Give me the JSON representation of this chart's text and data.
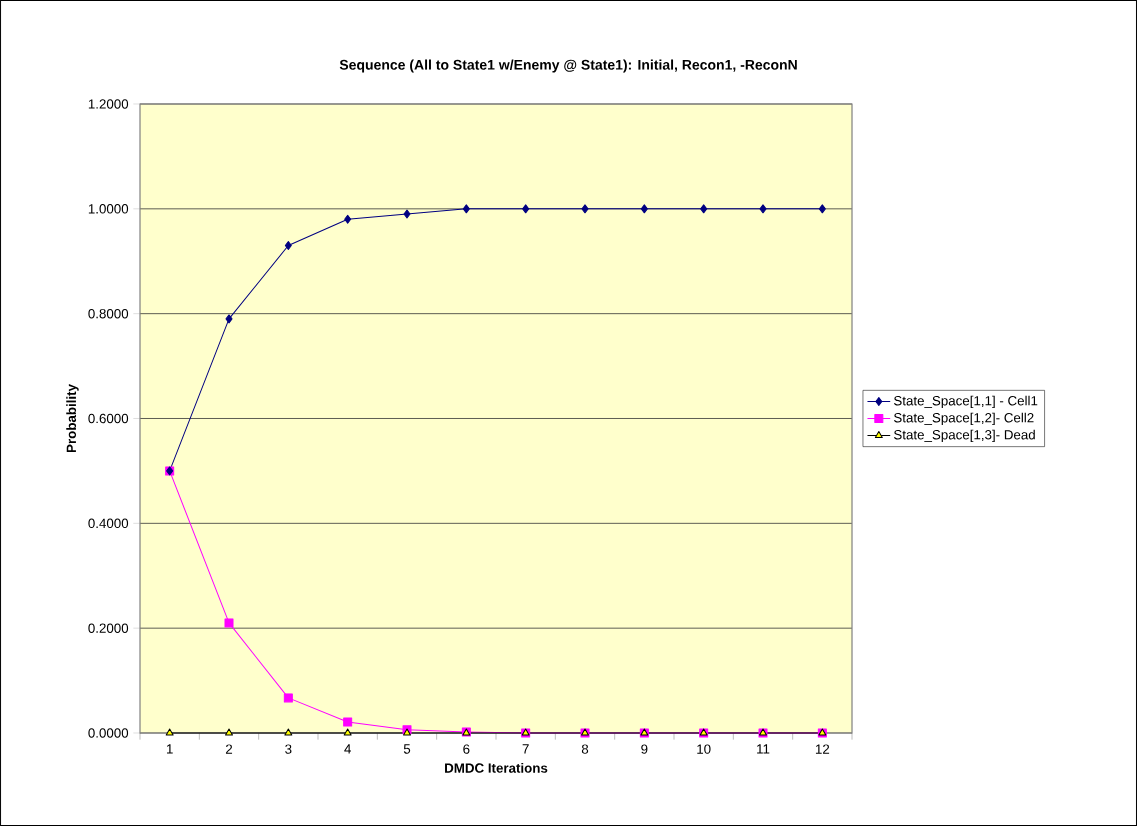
{
  "chart_data": {
    "type": "line",
    "title": "Sequence (All to State1 w/Enemy @ State1):  Initial, Recon1, -ReconN",
    "xlabel": "DMDC Iterations",
    "ylabel": "Probability",
    "categories": [
      "1",
      "2",
      "3",
      "4",
      "5",
      "6",
      "7",
      "8",
      "9",
      "10",
      "11",
      "12"
    ],
    "series": [
      {
        "name": "State_Space[1,1] - Cell1",
        "color": "#000080",
        "marker": "diamond",
        "values": [
          0.5,
          0.79,
          0.93,
          0.98,
          0.99,
          1.0,
          1.0,
          1.0,
          1.0,
          1.0,
          1.0,
          1.0
        ]
      },
      {
        "name": "State_Space[1,2]-  Cell2",
        "color": "#ff00ff",
        "marker": "square",
        "values": [
          0.5,
          0.21,
          0.067,
          0.021,
          0.006,
          0.002,
          0.0,
          0.0,
          0.0,
          0.0,
          0.0,
          0.0
        ]
      },
      {
        "name": "State_Space[1,3]-  Dead",
        "color": "#000000",
        "marker": "triangle",
        "values": [
          0,
          0,
          0,
          0,
          0,
          0,
          0,
          0,
          0,
          0,
          0,
          0
        ]
      }
    ],
    "ylim": [
      0,
      1.2
    ],
    "yticks": [
      {
        "value": 0,
        "label": "0.0000"
      },
      {
        "value": 0.2,
        "label": "0.2000"
      },
      {
        "value": 0.4,
        "label": "0.4000"
      },
      {
        "value": 0.6,
        "label": "0.6000"
      },
      {
        "value": 0.8,
        "label": "0.8000"
      },
      {
        "value": 1.0,
        "label": "1.0000"
      },
      {
        "value": 1.2,
        "label": "1.2000"
      }
    ],
    "grid": "y",
    "legend": "right",
    "line_style": "solid"
  }
}
